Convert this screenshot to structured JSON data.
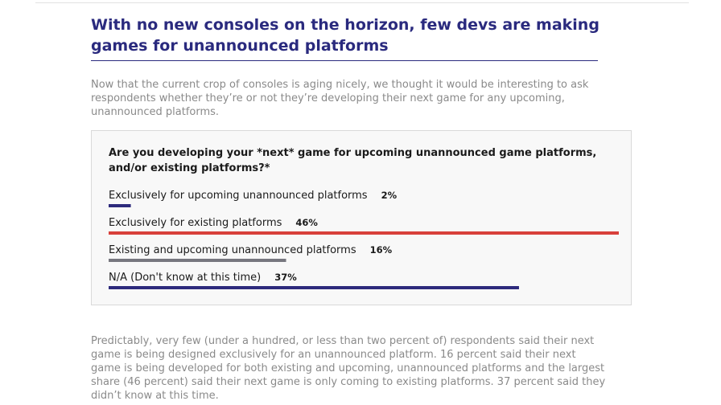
{
  "header": {
    "title": "With no new consoles on the horizon, few devs are making games for unannounced platforms"
  },
  "intro": "Now that the current crop of consoles is aging nicely, we thought it would be interesting to ask respondents whether they’re or not they’re developing their next game for any upcoming, unannounced platforms.",
  "chart_data": {
    "type": "bar",
    "orientation": "horizontal",
    "title": "Are you developing your *next* game for upcoming unannounced game platforms, and/or existing platforms?*",
    "xlabel": "",
    "ylabel": "",
    "xlim": [
      0,
      46
    ],
    "grid": false,
    "legend": "none",
    "categories": [
      "Exclusively for upcoming unannounced platforms",
      "Exclusively for existing platforms",
      "Existing and upcoming unannounced platforms",
      "N/A (Don't know at this time)"
    ],
    "values": [
      2,
      46,
      16,
      37
    ],
    "value_labels": [
      "2%",
      "46%",
      "16%",
      "37%"
    ],
    "colors": [
      "#2d2a7c",
      "#d8403b",
      "#77777f",
      "#2d2a7c"
    ]
  },
  "outro": "Predictably, very few (under a hundred, or less than two percent of) respondents said their next game is being designed exclusively for an unannounced platform. 16 percent said their next game is being developed for both existing and upcoming, unannounced platforms and the largest share (46 percent) said their next game is only coming to existing platforms. 37 percent said they didn’t know at this time."
}
